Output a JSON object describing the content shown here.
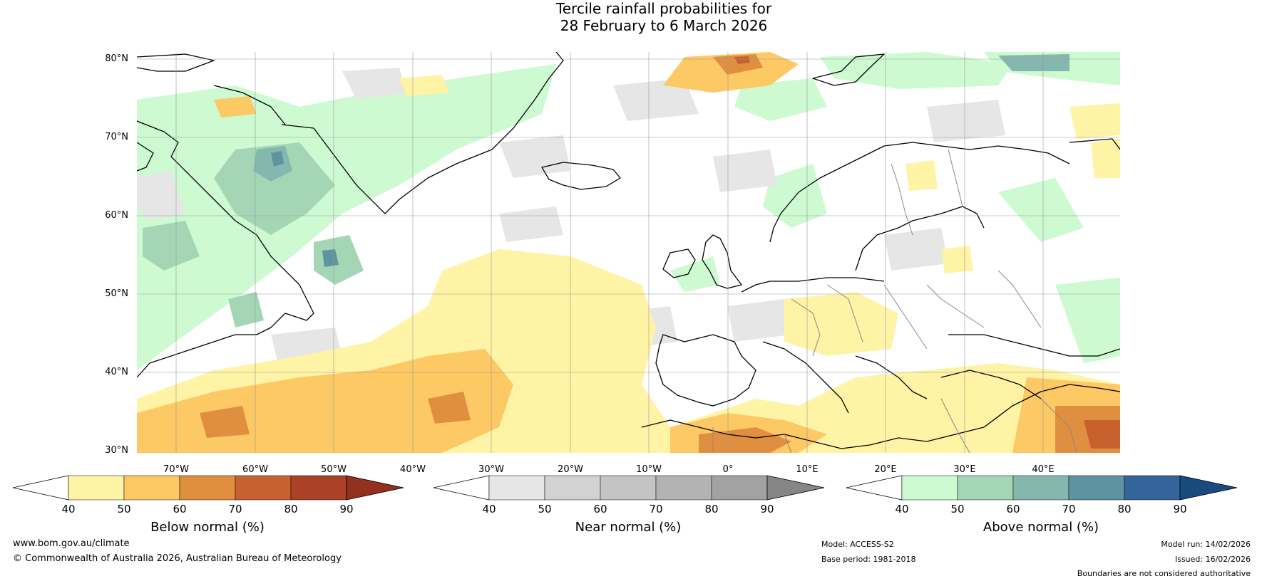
{
  "title": {
    "line1": "Tercile rainfall probabilities for",
    "line2": "28 February to 6 March 2026"
  },
  "map": {
    "lat_labels": [
      "80°N",
      "70°N",
      "60°N",
      "50°N",
      "40°N",
      "30°N"
    ],
    "lon_labels": [
      "70°W",
      "60°W",
      "50°W",
      "40°W",
      "30°W",
      "20°W",
      "10°W",
      "0°",
      "10°E",
      "20°E",
      "30°E",
      "40°E"
    ]
  },
  "legends": [
    {
      "label": "Below normal (%)",
      "ticks": [
        "40",
        "50",
        "60",
        "70",
        "80",
        "90"
      ],
      "colors": [
        "#fff3a6",
        "#fdc965",
        "#e08f40",
        "#c9612f",
        "#ab4227"
      ],
      "under": "#ffffff",
      "over": "#93301e"
    },
    {
      "label": "Near normal (%)",
      "ticks": [
        "40",
        "50",
        "60",
        "70",
        "80",
        "90"
      ],
      "colors": [
        "#e6e6e6",
        "#d2d2d2",
        "#c4c4c4",
        "#b3b3b3",
        "#a2a2a2"
      ],
      "under": "#ffffff",
      "over": "#868686"
    },
    {
      "label": "Above normal (%)",
      "ticks": [
        "40",
        "50",
        "60",
        "70",
        "80",
        "90"
      ],
      "colors": [
        "#cdfad0",
        "#a4d6b6",
        "#84b8ae",
        "#5f93a1",
        "#35649a"
      ],
      "under": "#ffffff",
      "over": "#184a80"
    }
  ],
  "footer": {
    "website": "www.bom.gov.au/climate",
    "copyright": "© Commonwealth of Australia 2026, Australian Bureau of Meteorology",
    "model": "Model: ACCESS-S2",
    "base_period": "Base period: 1981-2018",
    "model_run": "Model run: 14/02/2026",
    "issued": "Issued: 16/02/2026",
    "disclaimer": "Boundaries are not considered authoritative"
  }
}
